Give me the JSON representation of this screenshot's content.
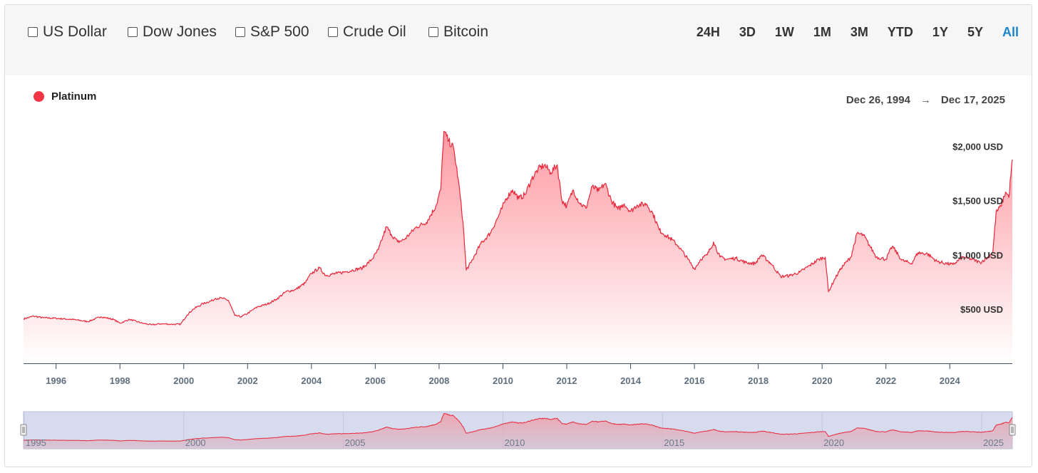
{
  "compare": [
    {
      "label": "US Dollar"
    },
    {
      "label": "Dow Jones"
    },
    {
      "label": "S&P 500"
    },
    {
      "label": "Crude Oil"
    },
    {
      "label": "Bitcoin"
    }
  ],
  "ranges": [
    "24H",
    "3D",
    "1W",
    "1M",
    "3M",
    "YTD",
    "1Y",
    "5Y",
    "All"
  ],
  "active_range": "All",
  "legend": {
    "label": "Platinum",
    "color": "#f23645"
  },
  "date_range": {
    "start": "Dec 26, 1994",
    "arrow": "→",
    "end": "Dec 17, 2025"
  },
  "colors": {
    "line": "#e8283b",
    "fill_top": "#fd9aa2",
    "fill_bottom": "#ffffff",
    "nav_bg": "#d6dbee",
    "accent": "#1a85c9"
  },
  "chart_data": {
    "type": "area",
    "title": "",
    "series": [
      {
        "name": "Platinum",
        "unit": "USD"
      }
    ],
    "x_range": [
      1994.98,
      2025.96
    ],
    "ylim": [
      0,
      2300
    ],
    "y_ticks": [
      {
        "value": 500,
        "label": "$500 USD"
      },
      {
        "value": 1000,
        "label": "$1,000 USD"
      },
      {
        "value": 1500,
        "label": "$1,500 USD"
      },
      {
        "value": 2000,
        "label": "$2,000 USD"
      }
    ],
    "x_ticks": [
      {
        "value": 1996,
        "label": "1996"
      },
      {
        "value": 1998,
        "label": "1998"
      },
      {
        "value": 2000,
        "label": "2000"
      },
      {
        "value": 2002,
        "label": "2002"
      },
      {
        "value": 2004,
        "label": "2004"
      },
      {
        "value": 2006,
        "label": "2006"
      },
      {
        "value": 2008,
        "label": "2008"
      },
      {
        "value": 2010,
        "label": "2010"
      },
      {
        "value": 2012,
        "label": "2012"
      },
      {
        "value": 2014,
        "label": "2014"
      },
      {
        "value": 2016,
        "label": "2016"
      },
      {
        "value": 2018,
        "label": "2018"
      },
      {
        "value": 2020,
        "label": "2020"
      },
      {
        "value": 2022,
        "label": "2022"
      },
      {
        "value": 2024,
        "label": "2024"
      }
    ],
    "navigator_ticks": [
      {
        "value": 1995,
        "label": "1995"
      },
      {
        "value": 2000,
        "label": "2000"
      },
      {
        "value": 2005,
        "label": "2005"
      },
      {
        "value": 2010,
        "label": "2010"
      },
      {
        "value": 2015,
        "label": "2015"
      },
      {
        "value": 2020,
        "label": "2020"
      },
      {
        "value": 2025,
        "label": "2025"
      }
    ],
    "points": [
      [
        1994.98,
        410
      ],
      [
        1995.3,
        435
      ],
      [
        1995.6,
        420
      ],
      [
        1996.0,
        415
      ],
      [
        1996.5,
        405
      ],
      [
        1997.0,
        385
      ],
      [
        1997.4,
        430
      ],
      [
        1997.8,
        405
      ],
      [
        1998.0,
        370
      ],
      [
        1998.3,
        405
      ],
      [
        1998.7,
        370
      ],
      [
        1999.0,
        355
      ],
      [
        1999.3,
        365
      ],
      [
        1999.6,
        360
      ],
      [
        1999.9,
        360
      ],
      [
        2000.1,
        445
      ],
      [
        2000.3,
        500
      ],
      [
        2000.6,
        550
      ],
      [
        2000.9,
        580
      ],
      [
        2001.0,
        600
      ],
      [
        2001.2,
        600
      ],
      [
        2001.4,
        580
      ],
      [
        2001.6,
        440
      ],
      [
        2001.8,
        430
      ],
      [
        2002.0,
        460
      ],
      [
        2002.3,
        520
      ],
      [
        2002.6,
        545
      ],
      [
        2002.9,
        590
      ],
      [
        2003.2,
        660
      ],
      [
        2003.5,
        680
      ],
      [
        2003.8,
        740
      ],
      [
        2004.0,
        830
      ],
      [
        2004.25,
        880
      ],
      [
        2004.45,
        810
      ],
      [
        2004.8,
        830
      ],
      [
        2005.0,
        840
      ],
      [
        2005.3,
        860
      ],
      [
        2005.6,
        880
      ],
      [
        2005.9,
        960
      ],
      [
        2006.1,
        1050
      ],
      [
        2006.35,
        1260
      ],
      [
        2006.5,
        1190
      ],
      [
        2006.7,
        1120
      ],
      [
        2006.9,
        1140
      ],
      [
        2007.1,
        1200
      ],
      [
        2007.3,
        1260
      ],
      [
        2007.6,
        1300
      ],
      [
        2007.9,
        1450
      ],
      [
        2008.05,
        1600
      ],
      [
        2008.15,
        2140
      ],
      [
        2008.3,
        2050
      ],
      [
        2008.45,
        1990
      ],
      [
        2008.6,
        1700
      ],
      [
        2008.75,
        1300
      ],
      [
        2008.85,
        860
      ],
      [
        2009.0,
        930
      ],
      [
        2009.3,
        1100
      ],
      [
        2009.6,
        1200
      ],
      [
        2009.9,
        1380
      ],
      [
        2010.1,
        1520
      ],
      [
        2010.3,
        1600
      ],
      [
        2010.5,
        1520
      ],
      [
        2010.7,
        1560
      ],
      [
        2010.9,
        1700
      ],
      [
        2011.1,
        1790
      ],
      [
        2011.3,
        1830
      ],
      [
        2011.5,
        1760
      ],
      [
        2011.7,
        1830
      ],
      [
        2011.85,
        1500
      ],
      [
        2012.0,
        1450
      ],
      [
        2012.2,
        1600
      ],
      [
        2012.4,
        1480
      ],
      [
        2012.6,
        1430
      ],
      [
        2012.8,
        1630
      ],
      [
        2013.0,
        1590
      ],
      [
        2013.2,
        1660
      ],
      [
        2013.4,
        1500
      ],
      [
        2013.6,
        1420
      ],
      [
        2013.8,
        1470
      ],
      [
        2014.0,
        1400
      ],
      [
        2014.2,
        1460
      ],
      [
        2014.5,
        1470
      ],
      [
        2014.7,
        1380
      ],
      [
        2014.9,
        1230
      ],
      [
        2015.1,
        1180
      ],
      [
        2015.3,
        1140
      ],
      [
        2015.5,
        1080
      ],
      [
        2015.8,
        960
      ],
      [
        2016.0,
        870
      ],
      [
        2016.2,
        960
      ],
      [
        2016.4,
        1000
      ],
      [
        2016.6,
        1120
      ],
      [
        2016.8,
        980
      ],
      [
        2017.0,
        960
      ],
      [
        2017.3,
        970
      ],
      [
        2017.6,
        930
      ],
      [
        2017.9,
        920
      ],
      [
        2018.1,
        1000
      ],
      [
        2018.4,
        920
      ],
      [
        2018.7,
        800
      ],
      [
        2019.0,
        810
      ],
      [
        2019.3,
        840
      ],
      [
        2019.6,
        900
      ],
      [
        2019.9,
        960
      ],
      [
        2020.1,
        980
      ],
      [
        2020.2,
        660
      ],
      [
        2020.4,
        780
      ],
      [
        2020.6,
        880
      ],
      [
        2020.9,
        980
      ],
      [
        2021.1,
        1200
      ],
      [
        2021.3,
        1180
      ],
      [
        2021.5,
        1080
      ],
      [
        2021.7,
        980
      ],
      [
        2022.0,
        960
      ],
      [
        2022.2,
        1080
      ],
      [
        2022.5,
        950
      ],
      [
        2022.8,
        920
      ],
      [
        2023.0,
        1020
      ],
      [
        2023.3,
        1010
      ],
      [
        2023.6,
        940
      ],
      [
        2023.9,
        920
      ],
      [
        2024.1,
        910
      ],
      [
        2024.4,
        980
      ],
      [
        2024.7,
        960
      ],
      [
        2024.95,
        930
      ],
      [
        2025.2,
        980
      ],
      [
        2025.35,
        1030
      ],
      [
        2025.45,
        1390
      ],
      [
        2025.6,
        1450
      ],
      [
        2025.75,
        1580
      ],
      [
        2025.85,
        1530
      ],
      [
        2025.96,
        1880
      ]
    ]
  }
}
